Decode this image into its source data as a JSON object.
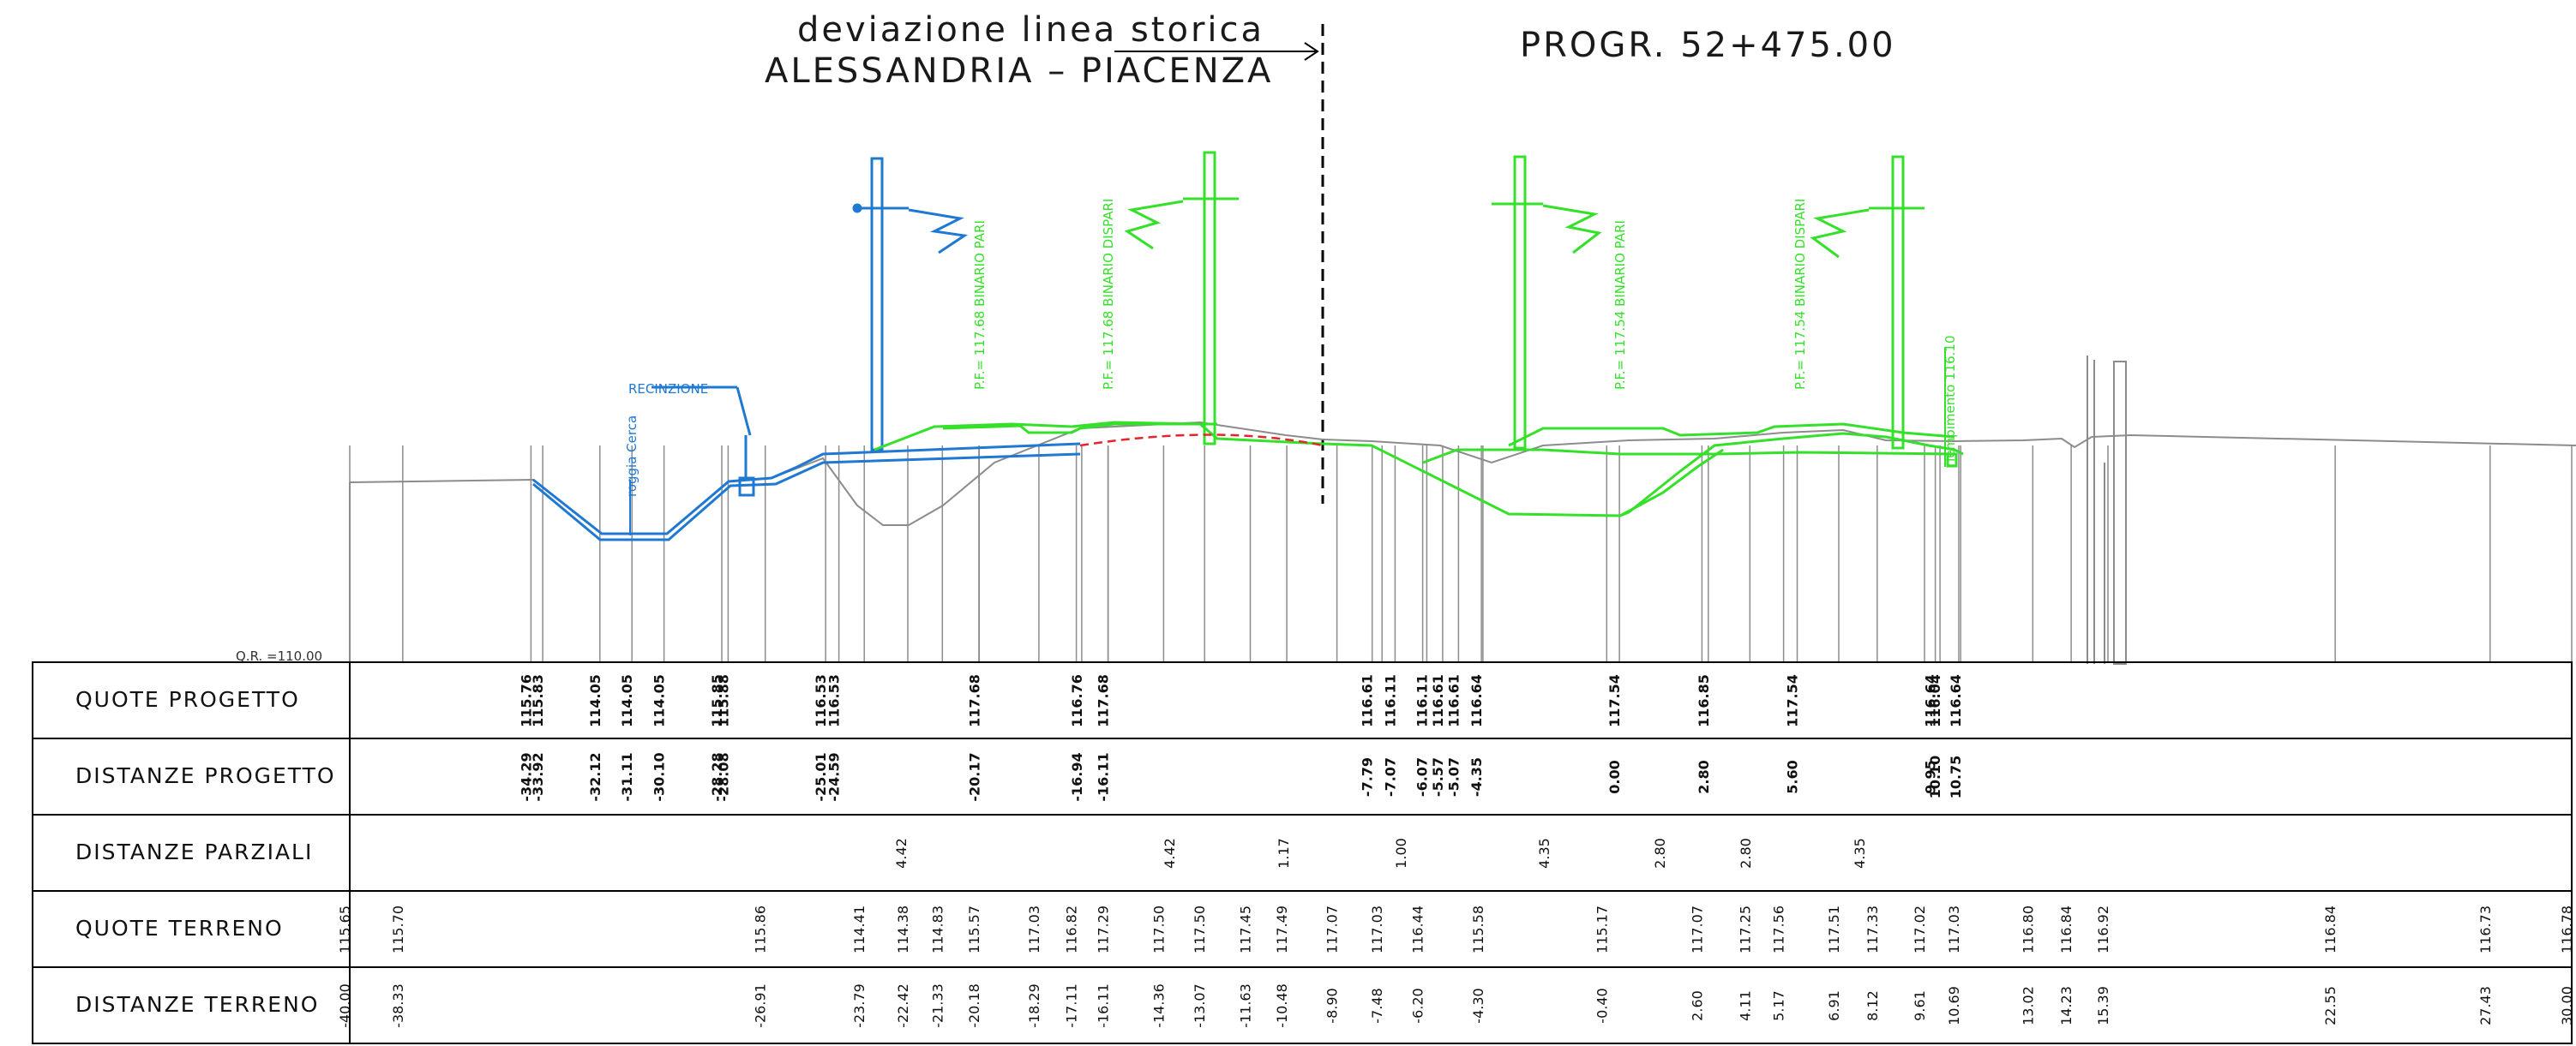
{
  "header": {
    "line1": "deviazione linea storica",
    "line2": "ALESSANDRIA – PIACENZA",
    "progressiva": "PROGR. 52+475.00"
  },
  "datum_label": "Q.R. =110.00",
  "colors": {
    "ground": "#8c8c8c",
    "historic_line": "#1f78d1",
    "new_line": "#35e02a",
    "axis_red": "#e3262b",
    "ink": "#000000"
  },
  "labels": {
    "recinzione": "RECINZIONE",
    "roggia": "roggia Cerca",
    "pf_pari_left": "P.F.= 117.68 BINARIO PARI",
    "pf_dispari_left": "P.F.= 117.68 BINARIO DISPARI",
    "pf_pari_right": "P.F.= 117.54 BINARIO PARI",
    "pf_dispari_right": "P.F.= 117.54 BINARIO DISPARI",
    "riempimento": "riempimento 116.10"
  },
  "table": {
    "rows": [
      "QUOTE PROGETTO",
      "DISTANZE PROGETTO",
      "DISTANZE PARZIALI",
      "QUOTE TERRENO",
      "DISTANZE TERRENO"
    ],
    "quote_progetto": [
      "115.76",
      "115.83",
      "114.05",
      "114.05",
      "114.05",
      "115.85",
      "115.88",
      "116.53",
      "116.53",
      "117.68",
      "116.76",
      "117.68",
      "116.61",
      "116.11",
      "116.11",
      "116.61",
      "116.61",
      "116.64",
      "117.54",
      "116.85",
      "117.54",
      "116.64",
      "116.04",
      "116.64"
    ],
    "distanze_progetto": [
      "-34.29",
      "-33.92",
      "-32.12",
      "-31.11",
      "-30.10",
      "-28.28",
      "-28.08",
      "-25.01",
      "-24.59",
      "-20.17",
      "-16.94",
      "-16.11",
      "-7.79",
      "-7.07",
      "-6.07",
      "-5.57",
      "-5.07",
      "-4.35",
      "0.00",
      "2.80",
      "5.60",
      "9.95",
      "10.10",
      "10.75"
    ],
    "distanze_parziali": [
      "4.42",
      "4.42",
      "1.17",
      "1.00",
      "4.35",
      "2.80",
      "2.80",
      "4.35"
    ],
    "quote_terreno": [
      "115.65",
      "115.70",
      "115.86",
      "114.41",
      "114.38",
      "114.83",
      "115.57",
      "117.03",
      "116.82",
      "117.29",
      "117.50",
      "117.50",
      "117.45",
      "117.49",
      "117.07",
      "117.03",
      "116.44",
      "115.58",
      "115.17",
      "117.07",
      "117.25",
      "117.56",
      "117.51",
      "117.33",
      "117.02",
      "117.03",
      "116.80",
      "116.84",
      "116.92",
      "116.84",
      "116.73",
      "116.78"
    ],
    "distanze_terreno": [
      "-40.00",
      "-38.33",
      "-26.91",
      "-23.79",
      "-22.42",
      "-21.33",
      "-20.18",
      "-18.29",
      "-17.11",
      "-16.11",
      "-14.36",
      "-13.07",
      "-11.63",
      "-10.48",
      "-8.90",
      "-7.48",
      "-6.20",
      "-4.30",
      "-0.40",
      "2.60",
      "4.11",
      "5.17",
      "6.91",
      "8.12",
      "9.61",
      "10.69",
      "13.02",
      "14.23",
      "15.39",
      "22.55",
      "27.43",
      "30.00"
    ]
  }
}
